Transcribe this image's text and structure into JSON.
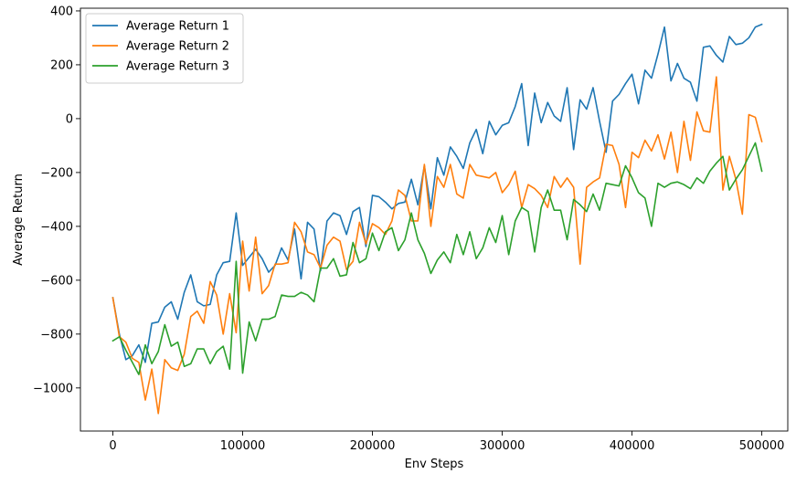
{
  "chart_data": {
    "type": "line",
    "title": "",
    "xlabel": "Env Steps",
    "ylabel": "Average Return",
    "xlim": [
      -25000,
      520000
    ],
    "ylim": [
      -1160,
      410
    ],
    "xticks": [
      0,
      100000,
      200000,
      300000,
      400000,
      500000
    ],
    "xtick_labels": [
      "0",
      "100000",
      "200000",
      "300000",
      "400000",
      "500000"
    ],
    "yticks": [
      -1000,
      -800,
      -600,
      -400,
      -200,
      0,
      200,
      400
    ],
    "ytick_labels": [
      "−1000",
      "−800",
      "−600",
      "−400",
      "−200",
      "0",
      "200",
      "400"
    ],
    "grid": false,
    "legend_position": "top-left",
    "x_step": 5000,
    "series": [
      {
        "name": "Average Return 1",
        "color": "#1f77b4",
        "values": [
          -665,
          -800,
          -895,
          -880,
          -840,
          -905,
          -760,
          -755,
          -700,
          -680,
          -745,
          -645,
          -580,
          -680,
          -695,
          -690,
          -580,
          -535,
          -530,
          -350,
          -545,
          -515,
          -485,
          -520,
          -570,
          -545,
          -480,
          -525,
          -410,
          -595,
          -385,
          -410,
          -565,
          -380,
          -350,
          -360,
          -430,
          -345,
          -330,
          -475,
          -285,
          -290,
          -310,
          -335,
          -315,
          -310,
          -225,
          -320,
          -175,
          -335,
          -145,
          -210,
          -105,
          -140,
          -185,
          -90,
          -40,
          -130,
          -10,
          -60,
          -25,
          -15,
          45,
          130,
          -100,
          95,
          -15,
          60,
          10,
          -10,
          115,
          -115,
          70,
          35,
          115,
          -10,
          -125,
          65,
          90,
          130,
          165,
          55,
          180,
          150,
          240,
          340,
          140,
          205,
          150,
          135,
          65,
          265,
          270,
          235,
          210,
          305,
          275,
          280,
          300,
          340,
          350
        ]
      },
      {
        "name": "Average Return 2",
        "color": "#ff7f0e",
        "values": [
          -665,
          -810,
          -830,
          -890,
          -905,
          -1045,
          -930,
          -1095,
          -895,
          -925,
          -935,
          -875,
          -735,
          -715,
          -760,
          -605,
          -655,
          -800,
          -650,
          -795,
          -455,
          -640,
          -440,
          -650,
          -620,
          -540,
          -540,
          -535,
          -385,
          -420,
          -495,
          -505,
          -555,
          -470,
          -440,
          -455,
          -560,
          -530,
          -385,
          -465,
          -390,
          -405,
          -430,
          -380,
          -265,
          -285,
          -380,
          -380,
          -170,
          -400,
          -215,
          -255,
          -170,
          -280,
          -295,
          -170,
          -210,
          -215,
          -220,
          -200,
          -275,
          -245,
          -195,
          -330,
          -245,
          -260,
          -285,
          -330,
          -215,
          -255,
          -220,
          -255,
          -540,
          -255,
          -235,
          -220,
          -95,
          -100,
          -170,
          -330,
          -125,
          -145,
          -80,
          -120,
          -60,
          -150,
          -50,
          -200,
          -10,
          -155,
          25,
          -45,
          -50,
          155,
          -265,
          -140,
          -225,
          -355,
          15,
          5,
          -85
        ]
      },
      {
        "name": "Average Return 3",
        "color": "#2ca02c",
        "values": [
          -825,
          -810,
          -860,
          -905,
          -950,
          -840,
          -910,
          -865,
          -765,
          -845,
          -830,
          -920,
          -910,
          -855,
          -855,
          -910,
          -865,
          -845,
          -930,
          -530,
          -945,
          -755,
          -825,
          -745,
          -745,
          -735,
          -655,
          -660,
          -660,
          -645,
          -655,
          -680,
          -555,
          -555,
          -520,
          -585,
          -580,
          -460,
          -535,
          -520,
          -425,
          -490,
          -420,
          -405,
          -490,
          -450,
          -350,
          -450,
          -500,
          -575,
          -525,
          -495,
          -535,
          -430,
          -505,
          -420,
          -520,
          -480,
          -405,
          -460,
          -360,
          -505,
          -380,
          -330,
          -345,
          -495,
          -330,
          -265,
          -340,
          -340,
          -450,
          -300,
          -320,
          -345,
          -280,
          -340,
          -240,
          -245,
          -250,
          -175,
          -220,
          -275,
          -295,
          -400,
          -240,
          -255,
          -240,
          -235,
          -245,
          -260,
          -220,
          -240,
          -195,
          -165,
          -140,
          -265,
          -225,
          -190,
          -140,
          -90,
          -195
        ]
      }
    ]
  }
}
